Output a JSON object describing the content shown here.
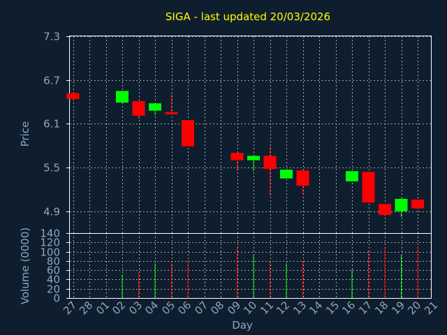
{
  "chart_data": {
    "type": "candlestick",
    "title": "SIGA - last updated 20/03/2026",
    "price_panel": {
      "ylabel": "Price",
      "ylim": [
        4.6,
        7.3
      ],
      "yticks": [
        "7.3",
        "6.7",
        "6.1",
        "5.5",
        "4.9"
      ],
      "grid": true
    },
    "volume_panel": {
      "ylabel": "Volume (0000)",
      "ylim": [
        0,
        140
      ],
      "yticks": [
        "140",
        "120",
        "100",
        "80",
        "60",
        "40",
        "20",
        "0"
      ],
      "grid": true
    },
    "xlabel": "Day",
    "x_ticks": [
      "27",
      "28",
      "01",
      "02",
      "03",
      "04",
      "05",
      "06",
      "07",
      "08",
      "09",
      "10",
      "11",
      "12",
      "13",
      "14",
      "15",
      "16",
      "17",
      "18",
      "19",
      "20",
      "21"
    ],
    "candles": [
      {
        "day": "27",
        "open": 6.52,
        "high": 6.52,
        "low": 6.44,
        "close": 6.44,
        "volume": 0
      },
      {
        "day": "02",
        "open": 6.39,
        "high": 6.55,
        "low": 6.39,
        "close": 6.55,
        "volume": 50
      },
      {
        "day": "03",
        "open": 6.41,
        "high": 6.41,
        "low": 6.16,
        "close": 6.21,
        "volume": 55
      },
      {
        "day": "04",
        "open": 6.28,
        "high": 6.38,
        "low": 6.22,
        "close": 6.38,
        "volume": 75
      },
      {
        "day": "05",
        "open": 6.26,
        "high": 6.51,
        "low": 6.24,
        "close": 6.24,
        "volume": 76
      },
      {
        "day": "06",
        "open": 6.15,
        "high": 6.15,
        "low": 5.79,
        "close": 5.79,
        "volume": 80
      },
      {
        "day": "09",
        "open": 5.7,
        "high": 5.7,
        "low": 5.45,
        "close": 5.6,
        "volume": 110
      },
      {
        "day": "10",
        "open": 5.6,
        "high": 5.66,
        "low": 5.45,
        "close": 5.66,
        "volume": 93
      },
      {
        "day": "11",
        "open": 5.66,
        "high": 5.79,
        "low": 5.12,
        "close": 5.48,
        "volume": 80
      },
      {
        "day": "12",
        "open": 5.35,
        "high": 5.47,
        "low": 5.35,
        "close": 5.47,
        "volume": 75
      },
      {
        "day": "13",
        "open": 5.46,
        "high": 5.46,
        "low": 5.13,
        "close": 5.25,
        "volume": 80
      },
      {
        "day": "16",
        "open": 5.31,
        "high": 5.45,
        "low": 5.31,
        "close": 5.45,
        "volume": 62
      },
      {
        "day": "17",
        "open": 5.44,
        "high": 5.44,
        "low": 5.02,
        "close": 5.02,
        "volume": 103
      },
      {
        "day": "18",
        "open": 5.0,
        "high": 5.0,
        "low": 4.83,
        "close": 4.85,
        "volume": 110
      },
      {
        "day": "19",
        "open": 4.9,
        "high": 5.08,
        "low": 4.82,
        "close": 5.07,
        "volume": 93
      },
      {
        "day": "20",
        "open": 5.06,
        "high": 5.06,
        "low": 4.92,
        "close": 4.94,
        "volume": 112
      }
    ],
    "colors": {
      "up": "#00ff00",
      "down": "#ff0000",
      "background": "#0f1e2e",
      "grid": "#d0d0d0",
      "title": "#ffff00",
      "axis_text": "#8ca7c2"
    }
  }
}
